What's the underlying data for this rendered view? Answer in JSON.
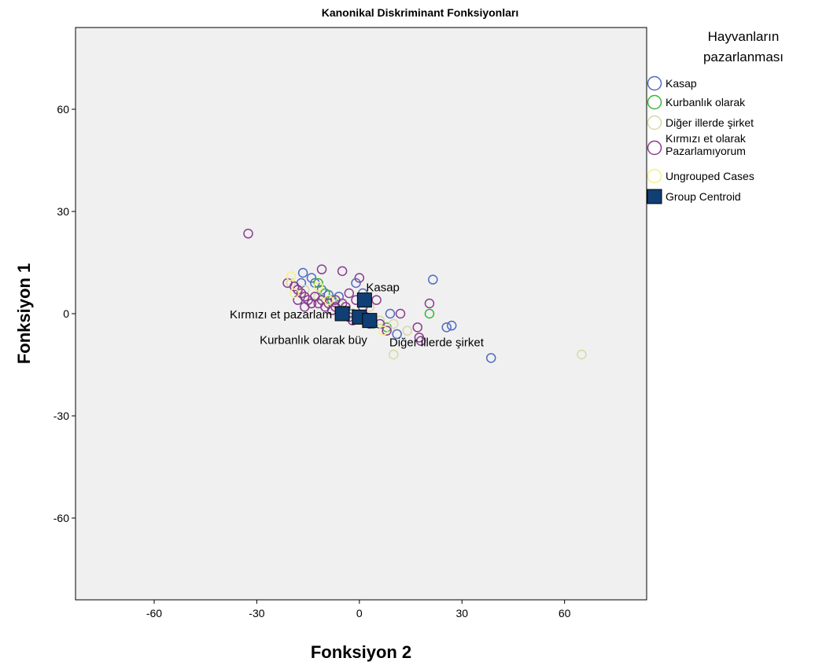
{
  "chart_data": {
    "type": "scatter",
    "title": "Kanonikal Diskriminant Fonksiyonları",
    "xlabel": "Fonksiyon 2",
    "ylabel": "Fonksiyon 1",
    "xlim": [
      -83,
      84
    ],
    "ylim": [
      -84,
      84
    ],
    "xticks": [
      -60,
      -30,
      0,
      30,
      60
    ],
    "yticks": [
      60,
      30,
      0,
      -30,
      -60
    ],
    "xtick_labels": [
      "-60",
      "-30",
      "0",
      "30",
      "60"
    ],
    "ytick_labels": [
      "60",
      "30",
      "0",
      "-30",
      "-60"
    ],
    "plot_background": "#f0f0f0",
    "legend": {
      "title_lines": [
        "Hayvanların",
        "pazarlanması"
      ],
      "placement": "right",
      "entries": [
        {
          "label_lines": [
            "Kasap"
          ],
          "marker": "circle",
          "color": "#4f6bc0"
        },
        {
          "label_lines": [
            "Kurbanlık olarak"
          ],
          "marker": "circle",
          "color": "#3cb43c"
        },
        {
          "label_lines": [
            "Diğer illerde şirket"
          ],
          "marker": "circle",
          "color": "#d8d8a8"
        },
        {
          "label_lines": [
            "Kırmızı et olarak",
            "Pazarlamıyorum"
          ],
          "marker": "circle",
          "color": "#8a3d8f"
        },
        {
          "label_lines": [
            "Ungrouped Cases"
          ],
          "marker": "circle",
          "color": "#f4f08a"
        },
        {
          "label_lines": [
            "Group Centroid"
          ],
          "marker": "square",
          "color": "#0f3f74"
        }
      ]
    },
    "series": [
      {
        "name": "Kasap",
        "color": "#4f6bc0",
        "points": [
          [
            -16.5,
            12
          ],
          [
            -14,
            10.5
          ],
          [
            -17,
            9
          ],
          [
            -13,
            9
          ],
          [
            -11,
            7
          ],
          [
            -9,
            5.5
          ],
          [
            -6,
            5
          ],
          [
            -1,
            9
          ],
          [
            1,
            6
          ],
          [
            9,
            0
          ],
          [
            11,
            -6
          ],
          [
            21.5,
            10
          ],
          [
            25.5,
            -4
          ],
          [
            27,
            -3.5
          ],
          [
            38.5,
            -13
          ]
        ]
      },
      {
        "name": "Kurbanlık olarak",
        "color": "#3cb43c",
        "points": [
          [
            -12,
            9
          ],
          [
            -10,
            6
          ],
          [
            -8,
            4
          ],
          [
            -14,
            3
          ],
          [
            -5,
            1
          ],
          [
            -2,
            0
          ],
          [
            4,
            -3
          ],
          [
            8,
            -4
          ],
          [
            20.5,
            0
          ]
        ]
      },
      {
        "name": "Diğer illerde şirket",
        "color": "#d8d8a8",
        "points": [
          [
            -20,
            9
          ],
          [
            -16,
            7
          ],
          [
            -12,
            5
          ],
          [
            -6,
            3
          ],
          [
            3,
            2
          ],
          [
            6,
            -2
          ],
          [
            10,
            -3
          ],
          [
            14,
            -5
          ],
          [
            10,
            -12
          ],
          [
            65,
            -12
          ]
        ]
      },
      {
        "name": "Kırmızı et olarak Pazarlamıyorum",
        "color": "#8a3d8f",
        "points": [
          [
            -32.5,
            23.5
          ],
          [
            -21,
            9
          ],
          [
            -19,
            8
          ],
          [
            -18,
            7
          ],
          [
            -17,
            6
          ],
          [
            -16,
            5
          ],
          [
            -15,
            4
          ],
          [
            -14,
            3
          ],
          [
            -18,
            4
          ],
          [
            -16,
            2
          ],
          [
            -13,
            5
          ],
          [
            -12,
            3
          ],
          [
            -11,
            4
          ],
          [
            -10,
            2
          ],
          [
            -9,
            3
          ],
          [
            -8,
            1
          ],
          [
            -7,
            4
          ],
          [
            -5,
            3
          ],
          [
            -4,
            2
          ],
          [
            -3,
            -1
          ],
          [
            -2,
            -2
          ],
          [
            -1,
            4
          ],
          [
            1,
            2
          ],
          [
            2,
            -1
          ],
          [
            3,
            -3
          ],
          [
            5,
            4
          ],
          [
            6,
            -3
          ],
          [
            8,
            -5
          ],
          [
            12,
            0
          ],
          [
            17,
            -4
          ],
          [
            17.5,
            -7
          ],
          [
            18,
            -8
          ],
          [
            -11,
            13
          ],
          [
            -5,
            12.5
          ],
          [
            0,
            10.5
          ],
          [
            20.5,
            3
          ],
          [
            -3,
            6
          ],
          [
            -7,
            2
          ]
        ]
      },
      {
        "name": "Ungrouped Cases",
        "color": "#f4f08a",
        "points": [
          [
            -20,
            11
          ],
          [
            -19,
            6
          ],
          [
            -12,
            8
          ],
          [
            -9,
            4
          ],
          [
            7,
            -5
          ]
        ]
      }
    ],
    "centroids": [
      {
        "label": "Kasap",
        "x": 1.5,
        "y": 4
      },
      {
        "label": "Kırmızı et  pazarlam",
        "x": -5,
        "y": 0
      },
      {
        "label": "Kurbanlık olarak büy",
        "x": 0,
        "y": -1
      },
      {
        "label": "Diğer illerde şirket",
        "x": 3,
        "y": -2
      }
    ]
  }
}
